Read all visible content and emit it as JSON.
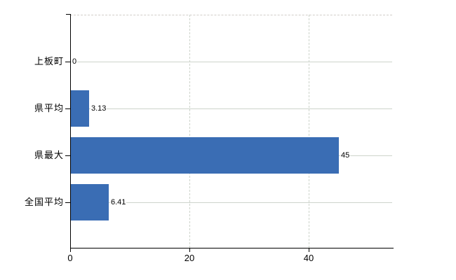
{
  "chart_data": {
    "type": "bar",
    "orientation": "horizontal",
    "title": "",
    "xlabel": "",
    "ylabel": "",
    "categories": [
      "上板町",
      "県平均",
      "県最大",
      "全国平均"
    ],
    "values": [
      0,
      3.13,
      45,
      6.41
    ],
    "value_labels": [
      "0",
      "3.13",
      "45",
      "6.41"
    ],
    "xticks": [
      0,
      20,
      40
    ],
    "xtick_labels": [
      "0",
      "20",
      "40"
    ],
    "xlim": [
      0,
      54.1
    ],
    "grid": "vertical dashed gridlines at ticks; solid row leader lines to right edge; dashed top border",
    "legend": "none",
    "colors": {
      "bar": "#3a6db4",
      "axis": "#000000",
      "gridline": "#cdd4cb",
      "top_border": "#d2cdc9",
      "text": "#000000",
      "background": "#ffffff"
    }
  }
}
